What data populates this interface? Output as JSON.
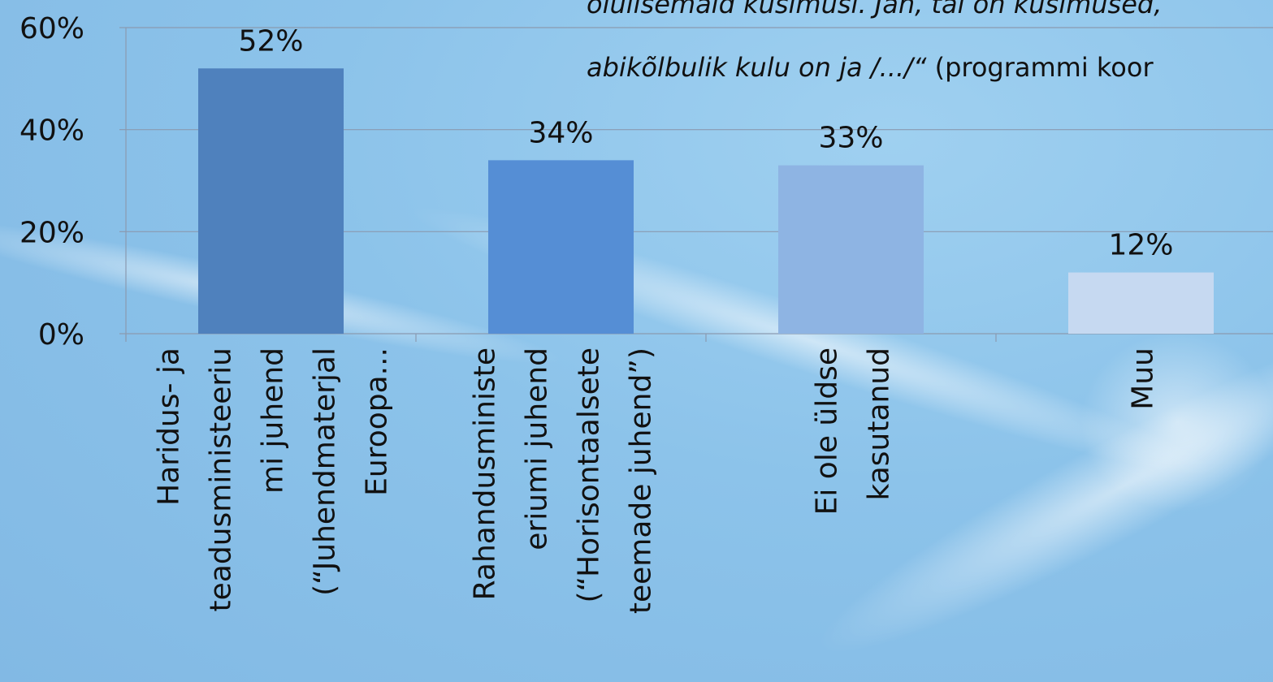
{
  "quote": {
    "line1_italic": "olulisemaid küsimusi. Jah, tal on küsimused,",
    "line2_italic": "abikõlbulik kulu on ja /.../“",
    "line2_normal": " (programmi koor"
  },
  "chart_data": {
    "type": "bar",
    "categories": [
      [
        "Haridus- ja",
        "teadusministeeriu",
        "mi juhend",
        "(“Juhendmaterjal",
        "Euroopa..."
      ],
      [
        "Rahandusministe",
        "eriumi juhend",
        "(“Horisontaalsete",
        "teemade juhend”)"
      ],
      [
        "Ei ole üldse",
        "kasutanud"
      ],
      [
        "Muu"
      ]
    ],
    "values": [
      52,
      34,
      33,
      12
    ],
    "data_labels": [
      "52%",
      "34%",
      "33%",
      "12%"
    ],
    "y_ticks": [
      "0%",
      "20%",
      "40%",
      "60%"
    ],
    "ylim": [
      0,
      60
    ],
    "grid": true,
    "colors": [
      "#4f81bd",
      "#558ed5",
      "#8eb4e3",
      "#c6d9f1"
    ]
  }
}
